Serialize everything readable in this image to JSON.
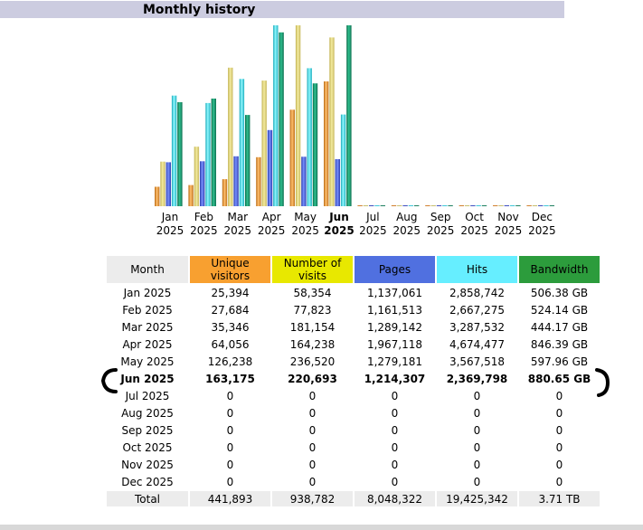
{
  "title": "Monthly history",
  "colors": {
    "unique": "#f8a030",
    "visits": "#e8e800",
    "pages": "#5070e0",
    "hits": "#66eeff",
    "bandwidth": "#2c9c3c",
    "month_header": "#ececec"
  },
  "table": {
    "headers": {
      "month": "Month",
      "unique": "Unique visitors",
      "visits": "Number of visits",
      "pages": "Pages",
      "hits": "Hits",
      "bandwidth": "Bandwidth"
    },
    "rows": [
      {
        "month": "Jan 2025",
        "unique": "25,394",
        "visits": "58,354",
        "pages": "1,137,061",
        "hits": "2,858,742",
        "bandwidth": "506.38 GB"
      },
      {
        "month": "Feb 2025",
        "unique": "27,684",
        "visits": "77,823",
        "pages": "1,161,513",
        "hits": "2,667,275",
        "bandwidth": "524.14 GB"
      },
      {
        "month": "Mar 2025",
        "unique": "35,346",
        "visits": "181,154",
        "pages": "1,289,142",
        "hits": "3,287,532",
        "bandwidth": "444.17 GB"
      },
      {
        "month": "Apr 2025",
        "unique": "64,056",
        "visits": "164,238",
        "pages": "1,967,118",
        "hits": "4,674,477",
        "bandwidth": "846.39 GB"
      },
      {
        "month": "May 2025",
        "unique": "126,238",
        "visits": "236,520",
        "pages": "1,279,181",
        "hits": "3,567,518",
        "bandwidth": "597.96 GB"
      },
      {
        "month": "Jun 2025",
        "unique": "163,175",
        "visits": "220,693",
        "pages": "1,214,307",
        "hits": "2,369,798",
        "bandwidth": "880.65 GB"
      },
      {
        "month": "Jul 2025",
        "unique": "0",
        "visits": "0",
        "pages": "0",
        "hits": "0",
        "bandwidth": "0"
      },
      {
        "month": "Aug 2025",
        "unique": "0",
        "visits": "0",
        "pages": "0",
        "hits": "0",
        "bandwidth": "0"
      },
      {
        "month": "Sep 2025",
        "unique": "0",
        "visits": "0",
        "pages": "0",
        "hits": "0",
        "bandwidth": "0"
      },
      {
        "month": "Oct 2025",
        "unique": "0",
        "visits": "0",
        "pages": "0",
        "hits": "0",
        "bandwidth": "0"
      },
      {
        "month": "Nov 2025",
        "unique": "0",
        "visits": "0",
        "pages": "0",
        "hits": "0",
        "bandwidth": "0"
      },
      {
        "month": "Dec 2025",
        "unique": "0",
        "visits": "0",
        "pages": "0",
        "hits": "0",
        "bandwidth": "0"
      }
    ],
    "total": {
      "label": "Total",
      "unique": "441,893",
      "visits": "938,782",
      "pages": "8,048,322",
      "hits": "19,425,342",
      "bandwidth": "3.71 TB"
    }
  },
  "chart_data": {
    "type": "bar",
    "categories": [
      "Jan",
      "Feb",
      "Mar",
      "Apr",
      "May",
      "Jun",
      "Jul",
      "Aug",
      "Sep",
      "Oct",
      "Nov",
      "Dec"
    ],
    "year_labels": [
      "2025",
      "2025",
      "2025",
      "2025",
      "2025",
      "2025",
      "2025",
      "2025",
      "2025",
      "2025",
      "2025",
      "2025"
    ],
    "current_month_index": 5,
    "series": [
      {
        "name": "Unique visitors",
        "values": [
          25394,
          27684,
          35346,
          64056,
          126238,
          163175,
          0,
          0,
          0,
          0,
          0,
          0
        ]
      },
      {
        "name": "Number of visits",
        "values": [
          58354,
          77823,
          181154,
          164238,
          236520,
          220693,
          0,
          0,
          0,
          0,
          0,
          0
        ]
      },
      {
        "name": "Pages",
        "values": [
          1137061,
          1161513,
          1289142,
          1967118,
          1279181,
          1214307,
          0,
          0,
          0,
          0,
          0,
          0
        ]
      },
      {
        "name": "Hits",
        "values": [
          2858742,
          2667275,
          3287532,
          4674477,
          3567518,
          2369798,
          0,
          0,
          0,
          0,
          0,
          0
        ]
      },
      {
        "name": "Bandwidth (GB)",
        "values": [
          506.38,
          524.14,
          444.17,
          846.39,
          597.96,
          880.65,
          0,
          0,
          0,
          0,
          0,
          0
        ]
      }
    ]
  }
}
